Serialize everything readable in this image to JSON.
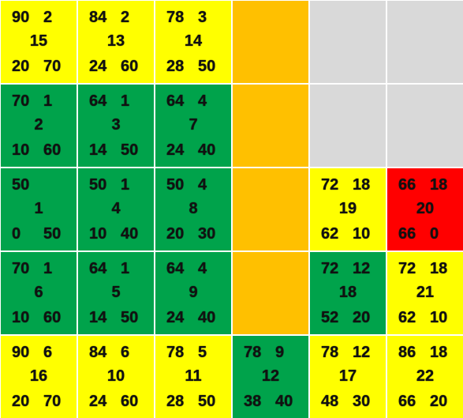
{
  "colors": {
    "yellow": "#ffff00",
    "green": "#00a34b",
    "orange": "#ffc000",
    "grey": "#d9d9d9",
    "red": "#ff0000"
  },
  "rows": [
    [
      {
        "color": "yellow",
        "tl": "90",
        "tr": "2",
        "mid": "15",
        "bl": "20",
        "br": "70"
      },
      {
        "color": "yellow",
        "tl": "84",
        "tr": "2",
        "mid": "13",
        "bl": "24",
        "br": "60"
      },
      {
        "color": "yellow",
        "tl": "78",
        "tr": "3",
        "mid": "14",
        "bl": "28",
        "br": "50"
      },
      {
        "color": "orange"
      },
      {
        "color": "grey"
      },
      {
        "color": "grey"
      }
    ],
    [
      {
        "color": "green",
        "tl": "70",
        "tr": "1",
        "mid": "2",
        "bl": "10",
        "br": "60"
      },
      {
        "color": "green",
        "tl": "64",
        "tr": "1",
        "mid": "3",
        "bl": "14",
        "br": "50"
      },
      {
        "color": "green",
        "tl": "64",
        "tr": "4",
        "mid": "7",
        "bl": "24",
        "br": "40"
      },
      {
        "color": "orange"
      },
      {
        "color": "grey"
      },
      {
        "color": "grey"
      }
    ],
    [
      {
        "color": "green",
        "tl": "50",
        "tr": "",
        "mid": "1",
        "bl": "0",
        "br": "50"
      },
      {
        "color": "green",
        "tl": "50",
        "tr": "1",
        "mid": "4",
        "bl": "10",
        "br": "40"
      },
      {
        "color": "green",
        "tl": "50",
        "tr": "4",
        "mid": "8",
        "bl": "20",
        "br": "30"
      },
      {
        "color": "orange"
      },
      {
        "color": "yellow",
        "tl": "72",
        "tr": "18",
        "mid": "19",
        "bl": "62",
        "br": "10"
      },
      {
        "color": "red",
        "tl": "66",
        "tr": "18",
        "mid": "20",
        "bl": "66",
        "br": "0"
      }
    ],
    [
      {
        "color": "green",
        "tl": "70",
        "tr": "1",
        "mid": "6",
        "bl": "10",
        "br": "60"
      },
      {
        "color": "green",
        "tl": "64",
        "tr": "1",
        "mid": "5",
        "bl": "14",
        "br": "50"
      },
      {
        "color": "green",
        "tl": "64",
        "tr": "4",
        "mid": "9",
        "bl": "24",
        "br": "40"
      },
      {
        "color": "orange"
      },
      {
        "color": "green",
        "tl": "72",
        "tr": "12",
        "mid": "18",
        "bl": "52",
        "br": "20"
      },
      {
        "color": "yellow",
        "tl": "72",
        "tr": "18",
        "mid": "21",
        "bl": "62",
        "br": "10"
      }
    ],
    [
      {
        "color": "yellow",
        "tl": "90",
        "tr": "6",
        "mid": "16",
        "bl": "20",
        "br": "70"
      },
      {
        "color": "yellow",
        "tl": "84",
        "tr": "6",
        "mid": "10",
        "bl": "24",
        "br": "60"
      },
      {
        "color": "yellow",
        "tl": "78",
        "tr": "5",
        "mid": "11",
        "bl": "28",
        "br": "50"
      },
      {
        "color": "green",
        "tl": "78",
        "tr": "9",
        "mid": "12",
        "bl": "38",
        "br": "40"
      },
      {
        "color": "yellow",
        "tl": "78",
        "tr": "12",
        "mid": "17",
        "bl": "48",
        "br": "30"
      },
      {
        "color": "yellow",
        "tl": "86",
        "tr": "18",
        "mid": "22",
        "bl": "66",
        "br": "20"
      }
    ]
  ]
}
